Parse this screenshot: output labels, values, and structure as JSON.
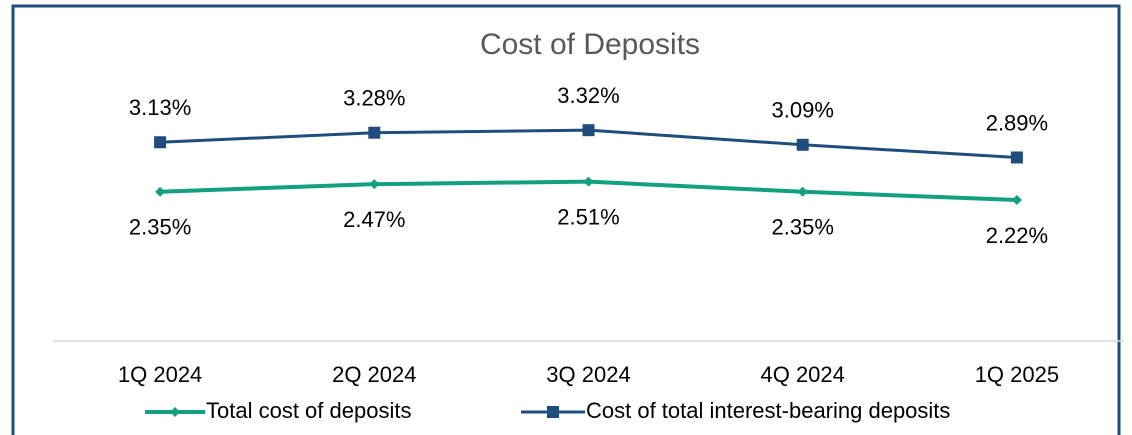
{
  "chart_data": {
    "type": "line",
    "title": "Cost of Deposits",
    "categories": [
      "1Q 2024",
      "2Q 2024",
      "3Q 2024",
      "4Q 2024",
      "1Q 2025"
    ],
    "series": [
      {
        "name": "Total cost of deposits",
        "color": "#13a07f",
        "values": [
          2.35,
          2.47,
          2.51,
          2.35,
          2.22
        ],
        "value_labels": [
          "2.35%",
          "2.47%",
          "2.51%",
          "2.35%",
          "2.22%"
        ]
      },
      {
        "name": "Cost of total interest-bearing deposits",
        "color": "#1f4e7d",
        "values": [
          3.13,
          3.28,
          3.32,
          3.09,
          2.89
        ],
        "value_labels": [
          "3.13%",
          "3.28%",
          "3.32%",
          "3.09%",
          "2.89%"
        ]
      }
    ],
    "ylim": [
      0,
      4
    ],
    "legend": "bottom"
  }
}
